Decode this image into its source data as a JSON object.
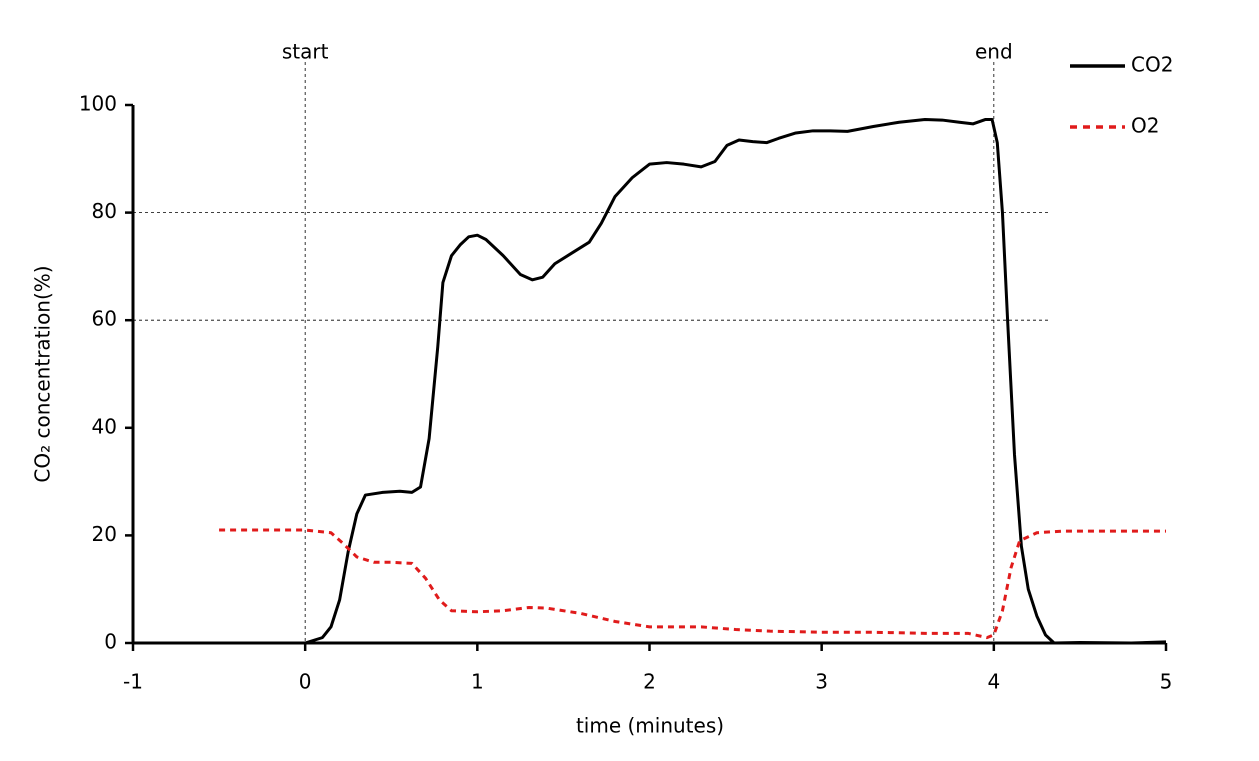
{
  "chart_data": {
    "type": "line",
    "x_label": "time (minutes)",
    "y_label": "CO₂ concentration(%)",
    "xlim": [
      -1,
      5
    ],
    "xticks": [
      -1,
      0,
      1,
      2,
      3,
      4,
      5
    ],
    "ylim": [
      0,
      100
    ],
    "yticks": [
      0,
      20,
      40,
      60,
      80,
      100
    ],
    "hlines": [
      60,
      80
    ],
    "vlines": [
      {
        "x": 0,
        "label": "start"
      },
      {
        "x": 4,
        "label": "end"
      }
    ],
    "legend": "upper right",
    "series": [
      {
        "name": "CO2",
        "color": "#000000",
        "style": "solid",
        "x": [
          0,
          0.1,
          0.15,
          0.2,
          0.25,
          0.3,
          0.35,
          0.45,
          0.55,
          0.62,
          0.67,
          0.72,
          0.77,
          0.8,
          0.85,
          0.9,
          0.95,
          1.0,
          1.05,
          1.15,
          1.25,
          1.32,
          1.38,
          1.45,
          1.55,
          1.65,
          1.72,
          1.8,
          1.9,
          2.0,
          2.1,
          2.2,
          2.3,
          2.38,
          2.45,
          2.52,
          2.6,
          2.68,
          2.75,
          2.85,
          2.95,
          3.05,
          3.15,
          3.3,
          3.45,
          3.6,
          3.7,
          3.8,
          3.88,
          3.95,
          3.99,
          4.02,
          4.05,
          4.08,
          4.12,
          4.16,
          4.2,
          4.25,
          4.3,
          4.35,
          4.5,
          4.8,
          5.0
        ],
        "values": [
          0,
          1,
          3,
          8,
          17,
          24,
          27.5,
          28,
          28.2,
          28,
          29,
          38,
          55,
          67,
          72,
          74,
          75.5,
          75.8,
          75,
          72,
          68.5,
          67.5,
          68,
          70.5,
          72.5,
          74.5,
          78,
          83,
          86.5,
          89,
          89.3,
          89,
          88.5,
          89.5,
          92.5,
          93.5,
          93.2,
          93,
          93.8,
          94.8,
          95.2,
          95.2,
          95.1,
          96,
          96.8,
          97.3,
          97.2,
          96.8,
          96.5,
          97.3,
          97.3,
          93,
          80,
          60,
          35,
          18,
          10,
          5,
          1.5,
          0,
          0.1,
          0,
          0.2
        ]
      },
      {
        "name": "O2",
        "color": "#e01b1b",
        "style": "dashed",
        "x": [
          -0.5,
          -0.3,
          0,
          0.15,
          0.22,
          0.3,
          0.4,
          0.5,
          0.62,
          0.7,
          0.78,
          0.85,
          1.0,
          1.15,
          1.3,
          1.4,
          1.6,
          1.8,
          2.0,
          2.2,
          2.3,
          2.5,
          2.7,
          3.0,
          3.3,
          3.6,
          3.85,
          3.96,
          4.0,
          4.05,
          4.1,
          4.15,
          4.25,
          4.4,
          4.7,
          5.0
        ],
        "values": [
          21,
          21,
          21,
          20.5,
          18.5,
          16,
          15,
          15,
          14.8,
          12,
          8,
          6,
          5.8,
          6,
          6.6,
          6.5,
          5.5,
          4,
          3,
          3,
          3,
          2.5,
          2.2,
          2,
          2,
          1.8,
          1.8,
          1,
          1.5,
          6,
          14,
          19,
          20.5,
          20.8,
          20.8,
          20.8
        ]
      }
    ]
  }
}
